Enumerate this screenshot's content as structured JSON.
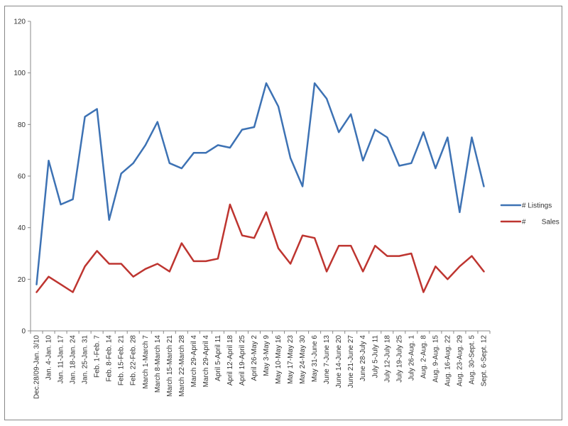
{
  "chart_data": {
    "type": "line",
    "categories": [
      "Dec.28/09-Jan. 3/10",
      "Jan. 4-Jan. 10",
      "Jan. 11-Jan. 17",
      "Jan. 18-Jan. 24",
      "Jan. 25-Jan. 31",
      "Feb. 1-Feb. 7",
      "Feb. 8-Feb. 14",
      "Feb. 15-Feb. 21",
      "Feb. 22-Feb. 28",
      "March 1-March 7",
      "March 8-March 14",
      "March 15-March 21",
      "March 22-March 28",
      "March 29-April 4",
      "March 29-April 4",
      "April 5-April 11",
      "April 12-April 18",
      "April 19-April 25",
      "April 26-May 2",
      "May 3-May 9",
      "May 10-May 16",
      "May 17-May 23",
      "May 24-May 30",
      "May 31-June 6",
      "June 7-June 13",
      "June 14-June 20",
      "June 21-June 27",
      "June 28-July 4",
      "July 5-July 11",
      "July 12-July 18",
      "July 19-July 25",
      "July 26-Aug. 1",
      "Aug. 2-Aug. 8",
      "Aug. 9-Aug. 15",
      "Aug. 16-Aug. 22",
      "Aug. 23-Aug. 29",
      "Aug. 30-Sept. 5",
      "Sept. 6-Sept. 12"
    ],
    "series": [
      {
        "name": "# Listings",
        "color": "#3d72b4",
        "values": [
          18,
          66,
          49,
          51,
          83,
          86,
          43,
          61,
          65,
          72,
          81,
          65,
          63,
          69,
          69,
          72,
          71,
          78,
          79,
          96,
          87,
          67,
          56,
          96,
          90,
          77,
          84,
          66,
          78,
          75,
          64,
          65,
          77,
          63,
          75,
          46,
          75,
          56
        ]
      },
      {
        "name": "#        Sales",
        "color": "#be3530",
        "values": [
          15,
          21,
          18,
          15,
          25,
          31,
          26,
          26,
          21,
          24,
          26,
          23,
          34,
          27,
          27,
          28,
          49,
          37,
          36,
          46,
          32,
          26,
          37,
          36,
          23,
          33,
          33,
          23,
          33,
          29,
          29,
          30,
          15,
          25,
          20,
          25,
          29,
          23
        ]
      }
    ],
    "yticks": [
      "0",
      "20",
      "40",
      "60",
      "80",
      "100",
      "120"
    ],
    "ylim": [
      0,
      120
    ],
    "title": "",
    "xlabel": "",
    "ylabel": "",
    "grid": false,
    "legend_position": "right"
  }
}
